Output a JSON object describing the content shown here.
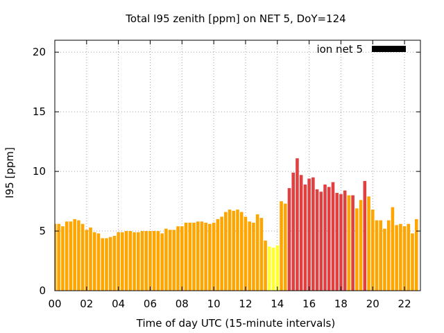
{
  "chart_data": {
    "type": "bar",
    "title": "Total I95 zenith [ppm] on NET 5, DoY=124",
    "xlabel": "Time of day UTC (15-minute intervals)",
    "ylabel": "I95 [ppm]",
    "xlim": [
      0,
      23
    ],
    "ylim": [
      0,
      21
    ],
    "x_ticks": [
      "00",
      "02",
      "04",
      "06",
      "08",
      "10",
      "12",
      "14",
      "16",
      "18",
      "20",
      "22"
    ],
    "x_tick_values": [
      0,
      2,
      4,
      6,
      8,
      10,
      12,
      14,
      16,
      18,
      20,
      22
    ],
    "y_ticks": [
      "0",
      "5",
      "10",
      "15",
      "20"
    ],
    "y_tick_values": [
      0,
      5,
      10,
      15,
      20
    ],
    "grid": true,
    "legend": {
      "placement": "top-right",
      "label": "ion net 5",
      "color": "#000000"
    },
    "interval_hours": 0.25,
    "bar_width_hours": 0.2,
    "colors": {
      "yellow": "#ffff33",
      "orange": "#ffa500",
      "red": "#e04040"
    },
    "values": [
      5.6,
      5.6,
      5.4,
      5.8,
      5.8,
      6.0,
      5.9,
      5.6,
      5.1,
      5.3,
      4.9,
      4.8,
      4.4,
      4.4,
      4.5,
      4.6,
      4.9,
      4.9,
      5.0,
      5.0,
      4.9,
      4.9,
      5.0,
      5.0,
      5.0,
      5.0,
      5.0,
      4.8,
      5.2,
      5.1,
      5.1,
      5.4,
      5.4,
      5.7,
      5.7,
      5.7,
      5.8,
      5.8,
      5.7,
      5.6,
      5.7,
      6.0,
      6.2,
      6.6,
      6.8,
      6.7,
      6.8,
      6.6,
      6.2,
      5.8,
      5.7,
      6.4,
      6.1,
      4.2,
      3.7,
      3.6,
      3.8,
      7.5,
      7.3,
      8.6,
      9.9,
      11.1,
      9.7,
      8.9,
      9.4,
      9.5,
      8.5,
      8.3,
      8.9,
      8.7,
      9.1,
      8.2,
      8.1,
      8.4,
      8.0,
      8.0,
      6.9,
      7.6,
      9.2,
      7.9,
      6.8,
      5.9,
      5.9,
      5.2,
      5.9,
      7.0,
      5.5,
      5.6,
      5.4,
      5.6,
      4.8,
      6.0
    ],
    "value_colors": [
      "orange",
      "orange",
      "orange",
      "orange",
      "orange",
      "orange",
      "orange",
      "orange",
      "orange",
      "orange",
      "orange",
      "orange",
      "orange",
      "orange",
      "orange",
      "orange",
      "orange",
      "orange",
      "orange",
      "orange",
      "orange",
      "orange",
      "orange",
      "orange",
      "orange",
      "orange",
      "orange",
      "orange",
      "orange",
      "orange",
      "orange",
      "orange",
      "orange",
      "orange",
      "orange",
      "orange",
      "orange",
      "orange",
      "orange",
      "orange",
      "orange",
      "orange",
      "orange",
      "orange",
      "orange",
      "orange",
      "orange",
      "orange",
      "orange",
      "orange",
      "orange",
      "orange",
      "orange",
      "orange",
      "yellow",
      "yellow",
      "yellow",
      "orange",
      "orange",
      "red",
      "red",
      "red",
      "red",
      "red",
      "red",
      "red",
      "red",
      "red",
      "red",
      "red",
      "red",
      "red",
      "red",
      "red",
      "orange",
      "red",
      "orange",
      "orange",
      "red",
      "orange",
      "orange",
      "orange",
      "orange",
      "orange",
      "orange",
      "orange",
      "orange",
      "orange",
      "orange",
      "orange",
      "orange",
      "orange"
    ]
  }
}
